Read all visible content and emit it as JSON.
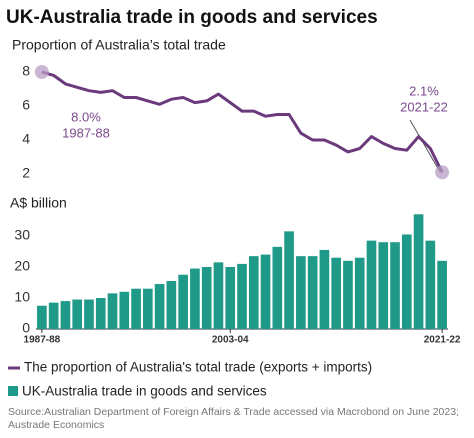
{
  "title": "UK-Australia trade in goods and services",
  "source": [
    "Source:Australian Department of Foreign Affairs & Trade accessed via Macrobond on June 2023;",
    "Austrade Economics"
  ],
  "chart_data": [
    {
      "type": "line",
      "subtitle": "Proportion of Australia’s total trade",
      "series": [
        {
          "name": "The proportion of Australia's total trade (exports + imports)",
          "color": "#6b3a7d",
          "values": [
            8.0,
            7.8,
            7.3,
            7.1,
            6.9,
            6.8,
            6.9,
            6.5,
            6.5,
            6.3,
            6.1,
            6.4,
            6.5,
            6.2,
            6.3,
            6.7,
            6.2,
            5.7,
            5.7,
            5.4,
            5.5,
            5.5,
            4.4,
            4.0,
            4.0,
            3.7,
            3.3,
            3.5,
            4.2,
            3.8,
            3.5,
            3.4,
            4.2,
            3.5,
            2.1
          ]
        }
      ],
      "annotations": [
        "8.0%",
        "1987-88",
        "2.1%",
        "2021-22"
      ],
      "ylim": [
        1.6,
        8.4
      ],
      "yticks": [
        2,
        4,
        6,
        8
      ],
      "grid": false
    },
    {
      "type": "bar",
      "subtitle": "A$ billion",
      "categories": [
        "1987-88",
        null,
        null,
        null,
        null,
        null,
        null,
        null,
        null,
        null,
        null,
        null,
        null,
        null,
        null,
        null,
        "2003-04",
        null,
        null,
        null,
        null,
        null,
        null,
        null,
        null,
        null,
        null,
        null,
        null,
        null,
        null,
        null,
        null,
        null,
        "2021-22"
      ],
      "series": [
        {
          "name": "UK-Australia trade in goods and services",
          "color": "#1f9a89",
          "values": [
            7.5,
            8.5,
            9,
            9.5,
            9.5,
            10,
            11.5,
            12,
            13,
            13,
            14.5,
            15.5,
            17.5,
            19.5,
            20,
            21.5,
            20,
            21,
            23.5,
            24,
            26.5,
            31.5,
            23.5,
            23.5,
            25.5,
            23,
            22,
            23,
            28.5,
            28,
            28,
            30.5,
            37,
            28.5,
            22
          ]
        }
      ],
      "ylim": [
        0,
        38
      ],
      "yticks": [
        0,
        10,
        20,
        30
      ],
      "grid": false
    }
  ]
}
